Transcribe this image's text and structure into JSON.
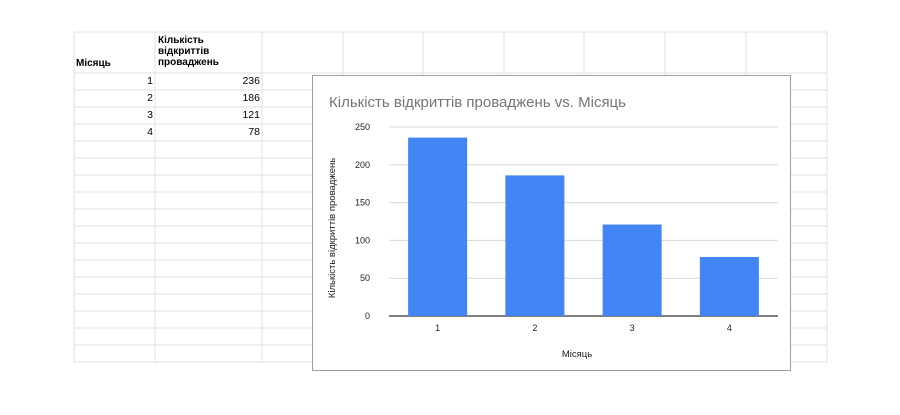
{
  "sheet": {
    "headers": [
      "Місяць",
      "Кількість\nвідкриттів\nпроваджень"
    ],
    "rows": [
      {
        "month": "1",
        "count": "236"
      },
      {
        "month": "2",
        "count": "186"
      },
      {
        "month": "3",
        "count": "121"
      },
      {
        "month": "4",
        "count": "78"
      }
    ]
  },
  "colors": {
    "bar": "#4285f4",
    "grid": "#d9d9d9",
    "axis": "#333333"
  },
  "chart_data": {
    "type": "bar",
    "title": "Кількість відкриттів проваджень vs. Місяць",
    "xlabel": "Місяць",
    "ylabel": "Кількість відкриттів проваджень",
    "categories": [
      "1",
      "2",
      "3",
      "4"
    ],
    "values": [
      236,
      186,
      121,
      78
    ],
    "ylim": [
      0,
      250
    ],
    "yticks": [
      "0",
      "50",
      "100",
      "150",
      "200",
      "250"
    ],
    "grid": true,
    "legend": "none"
  }
}
